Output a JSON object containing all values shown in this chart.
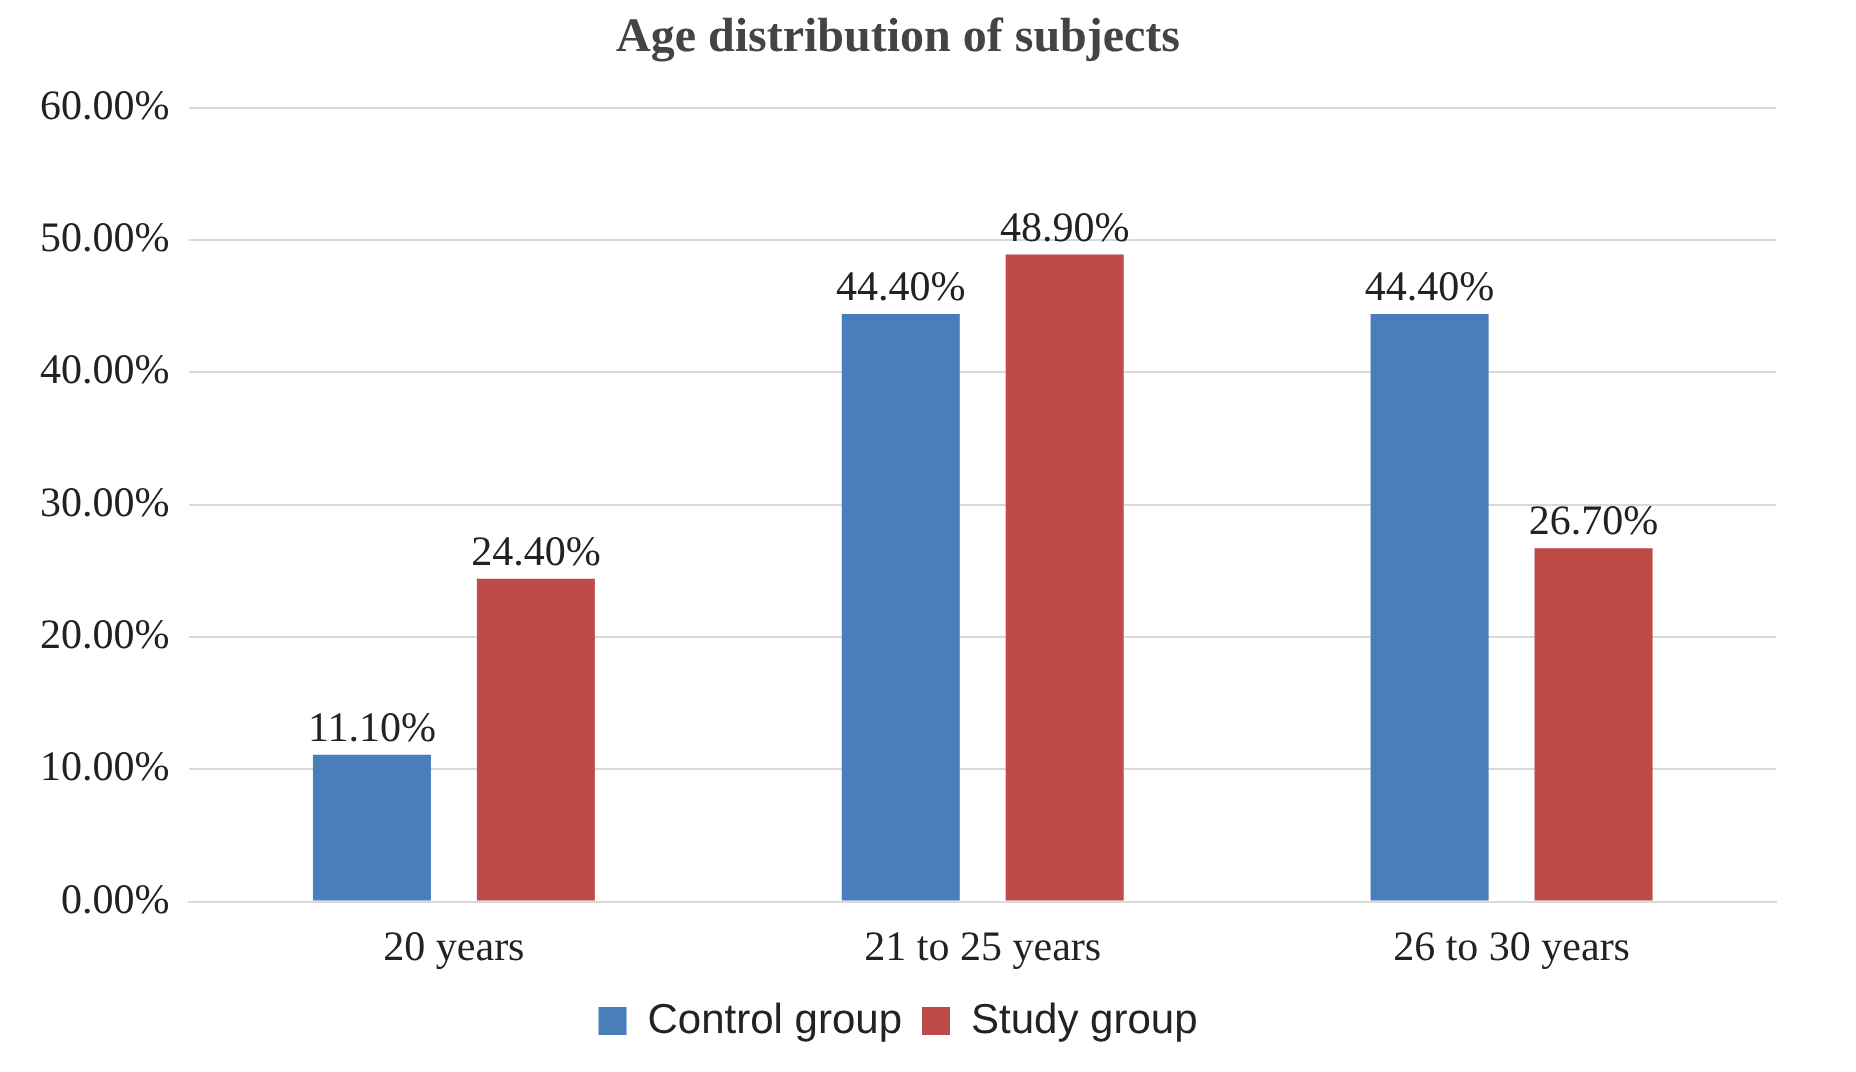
{
  "chart_data": {
    "type": "bar",
    "title": "Age distribution of subjects",
    "categories": [
      "20 years",
      "21 to 25 years",
      "26 to 30 years"
    ],
    "series": [
      {
        "name": "Control group",
        "color": "#4a7ebb",
        "values": [
          11.1,
          44.4,
          44.4
        ],
        "value_labels": [
          "11.10%",
          "44.40%",
          "44.40%"
        ]
      },
      {
        "name": "Study group",
        "color": "#be4b48",
        "values": [
          24.4,
          48.9,
          26.7
        ],
        "value_labels": [
          "24.40%",
          "48.90%",
          "26.70%"
        ]
      }
    ],
    "ylim": [
      0,
      60
    ],
    "yticks": [
      {
        "value": 0,
        "label": "0.00%"
      },
      {
        "value": 10,
        "label": "10.00%"
      },
      {
        "value": 20,
        "label": "20.00%"
      },
      {
        "value": 30,
        "label": "30.00%"
      },
      {
        "value": 40,
        "label": "40.00%"
      },
      {
        "value": 50,
        "label": "50.00%"
      },
      {
        "value": 60,
        "label": "60.00%"
      }
    ],
    "grid": "y",
    "legend": "bottom"
  }
}
